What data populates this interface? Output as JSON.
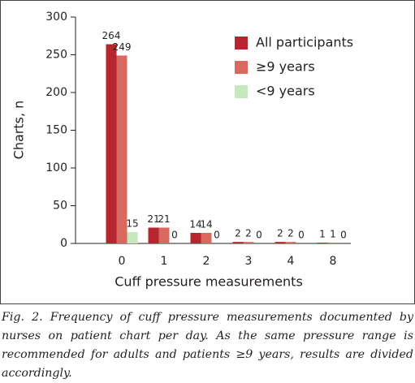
{
  "chart_data": {
    "type": "bar",
    "x_label": "Cuff pressure measurements",
    "y_label": "Charts, n",
    "categories": [
      "0",
      "1",
      "2",
      "3",
      "4",
      "8"
    ],
    "series": [
      {
        "name": "All participants",
        "color": "#b5262e",
        "values": [
          264,
          21,
          14,
          2,
          2,
          1
        ]
      },
      {
        "name": "≥9 years",
        "color": "#d9685f",
        "values": [
          249,
          21,
          14,
          2,
          2,
          1
        ]
      },
      {
        "name": "<9 years",
        "color": "#c5e8bf",
        "values": [
          15,
          0,
          0,
          0,
          0,
          0
        ]
      }
    ],
    "ylim": [
      0,
      300
    ],
    "yticks": [
      0,
      50,
      100,
      150,
      200,
      250,
      300
    ],
    "grid": false,
    "legend": "upper right"
  },
  "caption": "Fig. 2. Frequency of cuff pressure measurements documented by nurses on patient chart per day. As the same pressure range is recommended for adults and patients ≥9 years, results are divided accordingly."
}
